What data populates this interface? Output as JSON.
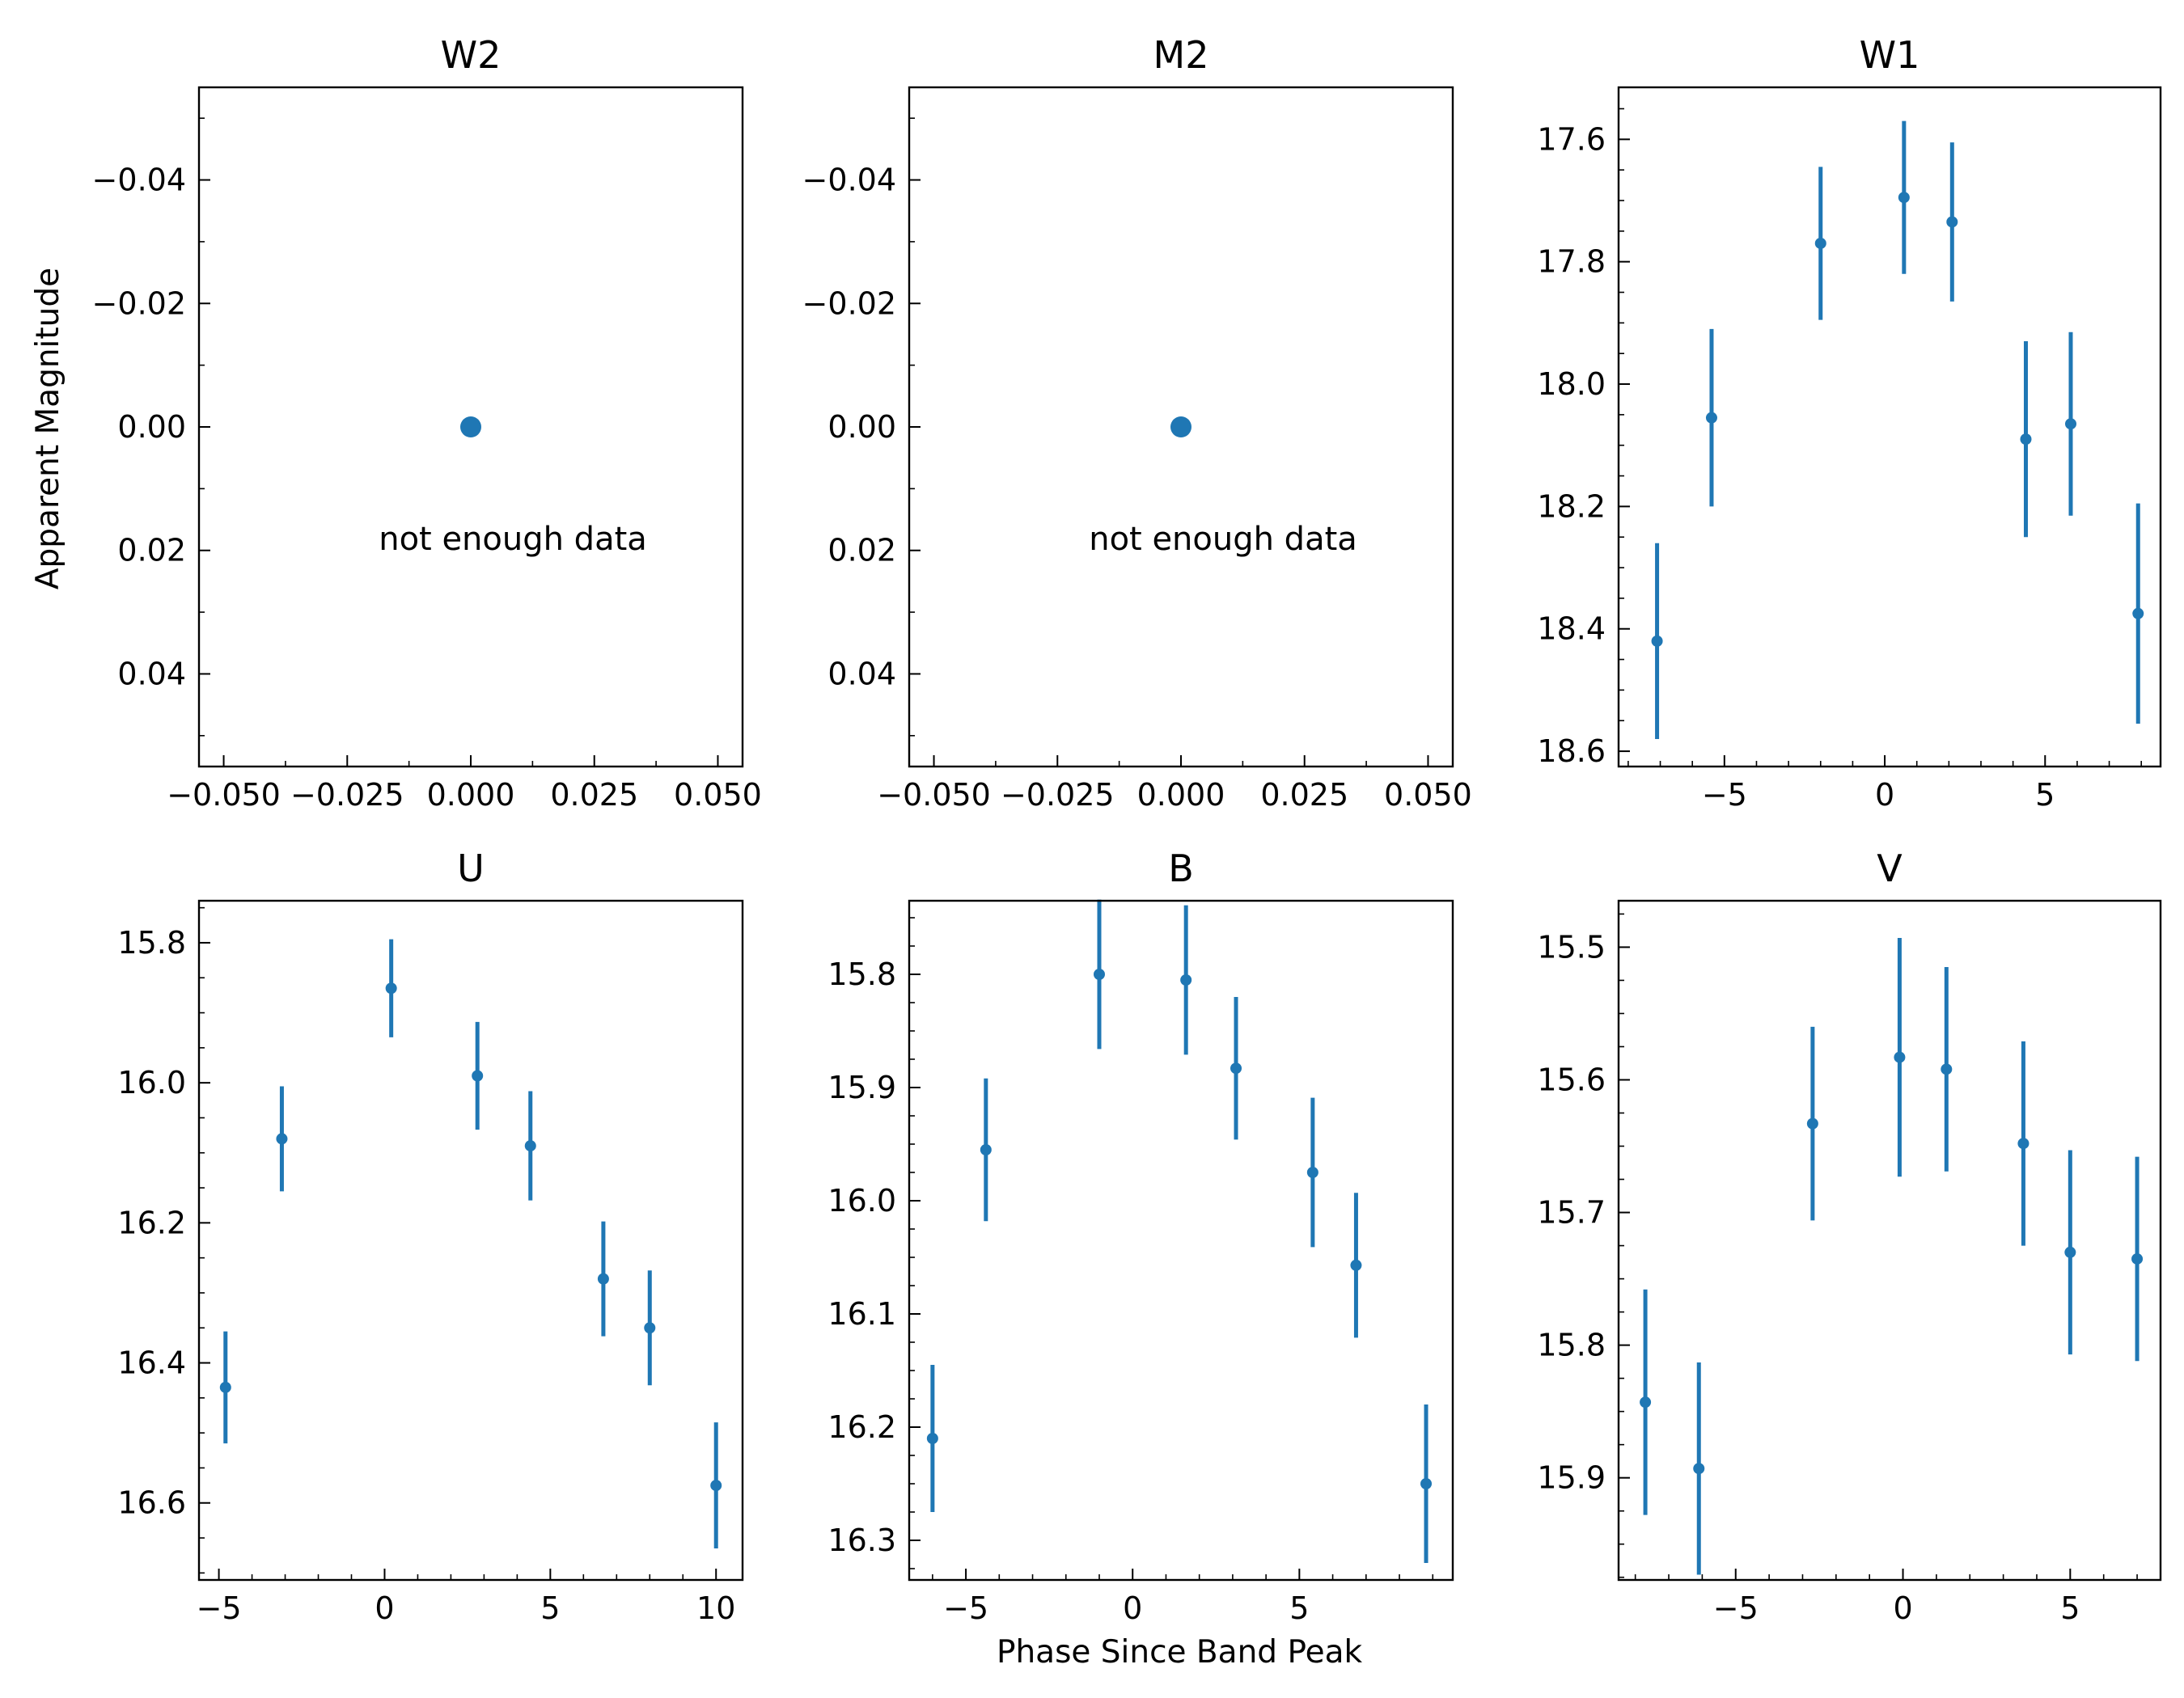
{
  "figure": {
    "ylabel": "Apparent Magnitude",
    "xlabel": "Phase Since Band Peak"
  },
  "chart_data": [
    {
      "type": "scatter",
      "title": "W2",
      "note": "not enough data",
      "x": [
        0.0
      ],
      "y": [
        0.0
      ],
      "yerr": [
        0
      ],
      "xlim": [
        -0.055,
        0.055
      ],
      "ylim": [
        0.055,
        -0.055
      ],
      "xticks": [
        -0.05,
        -0.025,
        0.0,
        0.025,
        0.05
      ],
      "xticklabels": [
        "−0.050",
        "−0.025",
        "0.000",
        "0.025",
        "0.050"
      ],
      "yticks": [
        -0.04,
        -0.02,
        0.0,
        0.02,
        0.04
      ],
      "yticklabels": [
        "−0.04",
        "−0.02",
        "0.00",
        "0.02",
        "0.04"
      ],
      "yminor": 0.01,
      "xminor": 0.0125
    },
    {
      "type": "scatter",
      "title": "M2",
      "note": "not enough data",
      "x": [
        0.0
      ],
      "y": [
        0.0
      ],
      "yerr": [
        0
      ],
      "xlim": [
        -0.055,
        0.055
      ],
      "ylim": [
        0.055,
        -0.055
      ],
      "xticks": [
        -0.05,
        -0.025,
        0.0,
        0.025,
        0.05
      ],
      "xticklabels": [
        "−0.050",
        "−0.025",
        "0.000",
        "0.025",
        "0.050"
      ],
      "yticks": [
        -0.04,
        -0.02,
        0.0,
        0.02,
        0.04
      ],
      "yticklabels": [
        "−0.04",
        "−0.02",
        "0.00",
        "0.02",
        "0.04"
      ],
      "yminor": 0.01,
      "xminor": 0.0125
    },
    {
      "type": "scatter",
      "title": "W1",
      "x": [
        -7.1,
        -5.4,
        -2.0,
        0.6,
        2.1,
        4.4,
        5.8,
        7.9
      ],
      "y": [
        18.42,
        18.055,
        17.77,
        17.695,
        17.735,
        18.09,
        18.065,
        18.375
      ],
      "yerr": [
        0.16,
        0.145,
        0.125,
        0.125,
        0.13,
        0.16,
        0.15,
        0.18
      ],
      "xlim": [
        -8.3,
        8.6
      ],
      "ylim": [
        18.625,
        17.515
      ],
      "xticks": [
        -5,
        0,
        5
      ],
      "xticklabels": [
        "−5",
        "0",
        "5"
      ],
      "yticks": [
        17.6,
        17.8,
        18.0,
        18.2,
        18.4,
        18.6
      ],
      "yticklabels": [
        "17.6",
        "17.8",
        "18.0",
        "18.2",
        "18.4",
        "18.6"
      ],
      "yminor": 0.05,
      "xminor": 1
    },
    {
      "type": "scatter",
      "title": "U",
      "x": [
        -4.8,
        -3.1,
        0.2,
        2.8,
        4.4,
        6.6,
        8.0,
        10.0
      ],
      "y": [
        16.435,
        16.08,
        15.865,
        15.99,
        16.09,
        16.28,
        16.35,
        16.575
      ],
      "yerr": [
        0.08,
        0.075,
        0.07,
        0.077,
        0.078,
        0.082,
        0.082,
        0.09
      ],
      "xlim": [
        -5.6,
        10.8
      ],
      "ylim": [
        16.71,
        15.74
      ],
      "xticks": [
        -5,
        0,
        5,
        10
      ],
      "xticklabels": [
        "−5",
        "0",
        "5",
        "10"
      ],
      "yticks": [
        15.8,
        16.0,
        16.2,
        16.4,
        16.6
      ],
      "yticklabels": [
        "15.8",
        "16.0",
        "16.2",
        "16.4",
        "16.6"
      ],
      "yminor": 0.05,
      "xminor": 1
    },
    {
      "type": "scatter",
      "title": "B",
      "x": [
        -6.0,
        -4.4,
        -1.0,
        1.6,
        3.1,
        5.4,
        6.7,
        8.8
      ],
      "y": [
        16.21,
        15.955,
        15.8,
        15.805,
        15.883,
        15.975,
        16.057,
        16.25
      ],
      "yerr": [
        0.065,
        0.063,
        0.066,
        0.066,
        0.063,
        0.066,
        0.064,
        0.07
      ],
      "xlim": [
        -6.7,
        9.6
      ],
      "ylim": [
        16.335,
        15.735
      ],
      "xticks": [
        -5,
        0,
        5
      ],
      "xticklabels": [
        "−5",
        "0",
        "5"
      ],
      "yticks": [
        15.8,
        15.9,
        16.0,
        16.1,
        16.2,
        16.3
      ],
      "yticklabels": [
        "15.8",
        "15.9",
        "16.0",
        "16.1",
        "16.2",
        "16.3"
      ],
      "yminor": 0.025,
      "xminor": 1
    },
    {
      "type": "scatter",
      "title": "V",
      "x": [
        -7.7,
        -6.1,
        -2.7,
        -0.1,
        1.3,
        3.6,
        5.0,
        7.0
      ],
      "y": [
        15.843,
        15.893,
        15.633,
        15.583,
        15.592,
        15.648,
        15.73,
        15.735
      ],
      "yerr": [
        0.085,
        0.08,
        0.073,
        0.09,
        0.077,
        0.077,
        0.077,
        0.077
      ],
      "xlim": [
        -8.5,
        7.7
      ],
      "ylim": [
        15.977,
        15.465
      ],
      "xticks": [
        -5,
        0,
        5
      ],
      "xticklabels": [
        "−5",
        "0",
        "5"
      ],
      "yticks": [
        15.5,
        15.6,
        15.7,
        15.8,
        15.9
      ],
      "yticklabels": [
        "15.5",
        "15.6",
        "15.7",
        "15.8",
        "15.9"
      ],
      "yminor": 0.025,
      "xminor": 1
    }
  ]
}
